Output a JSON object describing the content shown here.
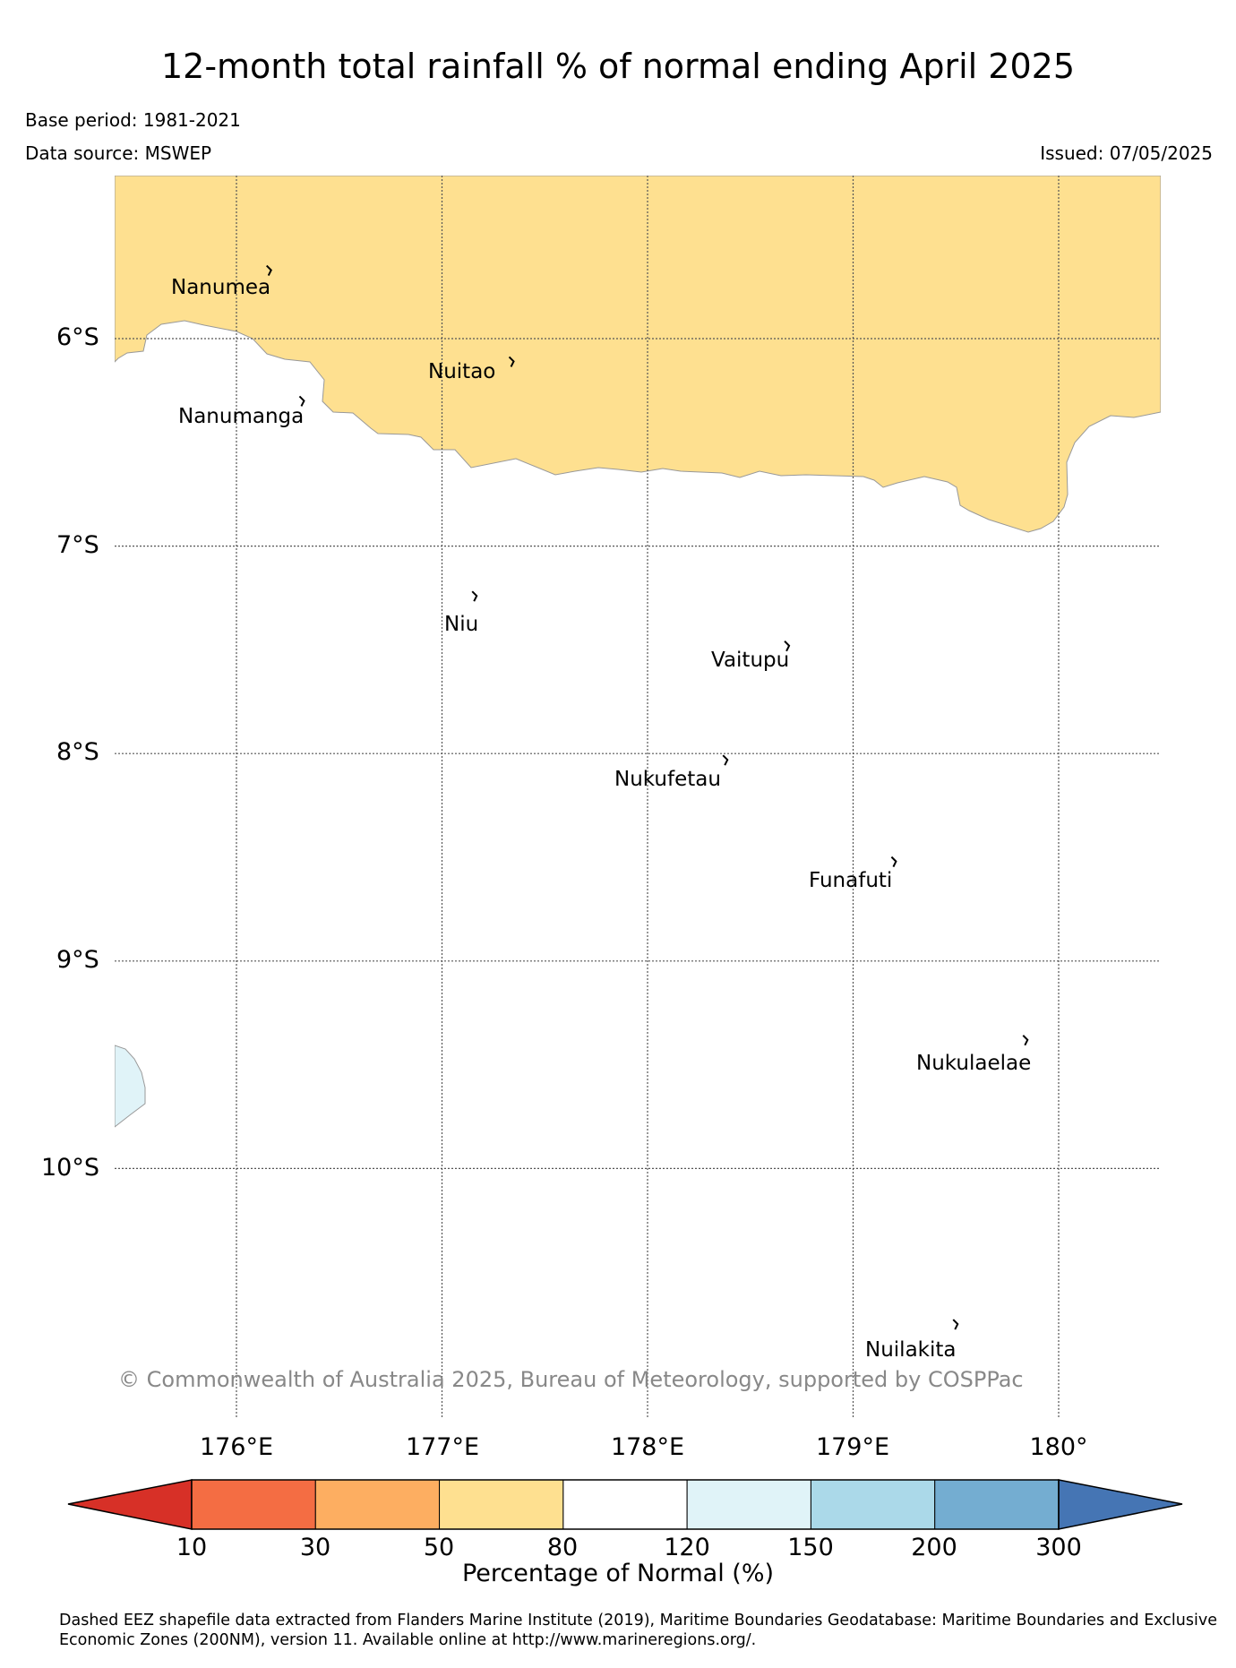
{
  "title": "12-month total rainfall % of normal ending April 2025",
  "base_period": "Base period: 1981-2021",
  "data_source": "Data source: MSWEP",
  "issued": "Issued: 07/05/2025",
  "map": {
    "lat_labels": [
      "6°S",
      "7°S",
      "8°S",
      "9°S",
      "10°S"
    ],
    "lon_labels": [
      "176°E",
      "177°E",
      "178°E",
      "179°E",
      "180°"
    ],
    "islands": [
      {
        "name": "Nanumea",
        "lon": 176.16,
        "lat": -5.67
      },
      {
        "name": "Nuitao",
        "lon": 177.34,
        "lat": -6.11
      },
      {
        "name": "Nanumanga",
        "lon": 176.32,
        "lat": -6.3
      },
      {
        "name": "Niu",
        "lon": 177.16,
        "lat": -7.24
      },
      {
        "name": "Vaitupu",
        "lon": 178.68,
        "lat": -7.48
      },
      {
        "name": "Nukufetau",
        "lon": 178.38,
        "lat": -8.03
      },
      {
        "name": "Funafuti",
        "lon": 179.2,
        "lat": -8.52
      },
      {
        "name": "Nukulaelae",
        "lon": 179.84,
        "lat": -9.38
      },
      {
        "name": "Nuilakita",
        "lon": 179.5,
        "lat": -10.75
      }
    ],
    "copyright": "© Commonwealth of Australia 2025, Bureau of Meteorology, supported by COSPPac",
    "zones": [
      {
        "category": "50-80",
        "color": "#fee090"
      },
      {
        "category": "120-150",
        "color": "#e0f3f8"
      }
    ]
  },
  "colorbar": {
    "label": "Percentage of Normal (%)",
    "ticks": [
      "10",
      "30",
      "50",
      "80",
      "120",
      "150",
      "200",
      "300"
    ],
    "colors": [
      "#d73027",
      "#f46d43",
      "#fdae61",
      "#fee090",
      "#ffffff",
      "#e0f3f8",
      "#abd9e9",
      "#74add1",
      "#4575b4"
    ]
  },
  "footnote": "Dashed EEZ shapefile data extracted from Flanders Marine Institute (2019), Maritime Boundaries Geodatabase: Maritime Boundaries and Exclusive Economic Zones (200NM), version 11. Available online at http://www.marineregions.org/."
}
